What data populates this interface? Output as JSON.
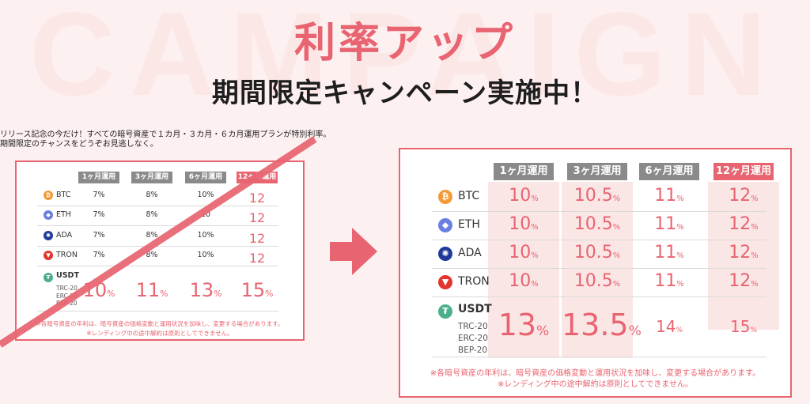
{
  "bg_word": "CAMPAIGN",
  "headline": "利率アップ",
  "subheadline": "期間限定キャンペーン実施中！",
  "intro_lines": [
    "リリース記念の今だけ！すべての暗号資産で１カ月・３カ月・６カ月運用プランが特別利率。",
    "期間限定のチャンスをどうぞお見逃しなく。"
  ],
  "pct_sign": "%",
  "colors": {
    "accent": "#e86470",
    "header_gray": "#8a8a8a",
    "cell_pink": "#fbe6e6",
    "background": "#fdf0f0"
  },
  "old_table": {
    "headers": [
      "1ヶ月運用",
      "3ヶ月運用",
      "6ヶ月運用",
      "12ヶ月運用"
    ],
    "coins": [
      {
        "name": "BTC",
        "icon": "bitcoin-icon",
        "color": "#f29a37",
        "rates": [
          "7%",
          "8%",
          "10%",
          "12"
        ]
      },
      {
        "name": "ETH",
        "icon": "ethereum-icon",
        "color": "#6a7fe0",
        "rates": [
          "7%",
          "8%",
          "10",
          "12"
        ]
      },
      {
        "name": "ADA",
        "icon": "cardano-icon",
        "color": "#1f3a9a",
        "rates": [
          "7%",
          "8%",
          "10%",
          "12"
        ]
      },
      {
        "name": "TRON",
        "icon": "tron-icon",
        "color": "#e2352e",
        "rates": [
          "7%",
          "8%",
          "10%",
          "12"
        ]
      }
    ],
    "usdt": {
      "name": "USDT",
      "icon": "tether-icon",
      "color": "#4caf8a",
      "networks": [
        "TRC-20",
        "ERC-20",
        "BEP-20"
      ],
      "rates": [
        "10",
        "11",
        "13",
        "15"
      ]
    },
    "notes": [
      "※各暗号資産の年利は、暗号資産の価格変動と運用状況を加味し、変更する場合があります。",
      "※レンディング中の途中解約は原則としてできません。"
    ]
  },
  "new_table": {
    "headers": [
      "1ヶ月運用",
      "3ヶ月運用",
      "6ヶ月運用",
      "12ヶ月運用"
    ],
    "coins": [
      {
        "name": "BTC",
        "icon": "bitcoin-icon",
        "color": "#f29a37",
        "rates": [
          "10",
          "10.5",
          "11",
          "12"
        ]
      },
      {
        "name": "ETH",
        "icon": "ethereum-icon",
        "color": "#6a7fe0",
        "rates": [
          "10",
          "10.5",
          "11",
          "12"
        ]
      },
      {
        "name": "ADA",
        "icon": "cardano-icon",
        "color": "#1f3a9a",
        "rates": [
          "10",
          "10.5",
          "11",
          "12"
        ]
      },
      {
        "name": "TRON",
        "icon": "tron-icon",
        "color": "#e2352e",
        "rates": [
          "10",
          "10.5",
          "11",
          "12"
        ]
      }
    ],
    "usdt": {
      "name": "USDT",
      "icon": "tether-icon",
      "color": "#4caf8a",
      "networks": [
        "TRC-20",
        "ERC-20",
        "BEP-20"
      ],
      "rates": [
        "13",
        "13.5",
        "14",
        "15"
      ]
    },
    "notes": [
      "※各暗号資産の年利は、暗号資産の価格変動と運用状況を加味し、変更する場合があります。",
      "※レンディング中の途中解約は原則としてできません。"
    ]
  }
}
